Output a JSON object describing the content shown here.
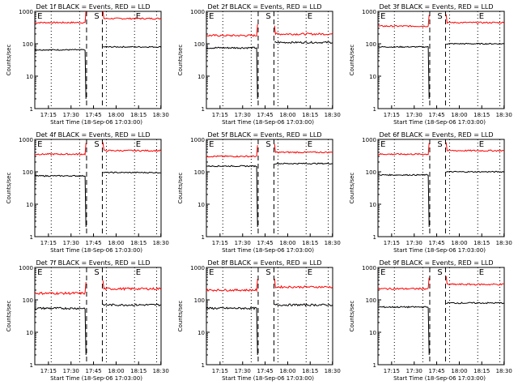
{
  "chart_data": [
    {
      "type": "line",
      "title": "Det 1f BLACK = Events, RED = LLD",
      "xlabel": "Start Time (18-Sep-06 17:03:00)",
      "ylabel": "Counts/sec",
      "yscale": "log",
      "ylim": [
        1,
        1000
      ],
      "y_ticks": [
        "1",
        "10",
        "100",
        "1000"
      ],
      "x_ticks": [
        "17:15",
        "17:30",
        "17:45",
        "18:00",
        "18:15",
        "18:30"
      ],
      "markers": [
        "E",
        "S",
        "E"
      ],
      "series": [
        {
          "color": "#ff0000",
          "level_before": 450,
          "level_after": 600,
          "noise": 0.05
        },
        {
          "color": "#000000",
          "level_before": 65,
          "level_after": 80,
          "noise": 0.04
        }
      ]
    },
    {
      "type": "line",
      "title": "Det 2f BLACK = Events, RED = LLD",
      "xlabel": "Start Time (18-Sep-06 17:03:00)",
      "ylabel": "Counts/sec",
      "yscale": "log",
      "ylim": [
        1,
        1000
      ],
      "y_ticks": [
        "1",
        "10",
        "100",
        "1000"
      ],
      "x_ticks": [
        "17:15",
        "17:30",
        "17:45",
        "18:00",
        "18:15",
        "18:30"
      ],
      "markers": [
        "E",
        "S",
        "E"
      ],
      "series": [
        {
          "color": "#ff0000",
          "level_before": 180,
          "level_after": 200,
          "noise": 0.07
        },
        {
          "color": "#000000",
          "level_before": 75,
          "level_after": 110,
          "noise": 0.06
        }
      ]
    },
    {
      "type": "line",
      "title": "Det 3f BLACK = Events, RED = LLD",
      "xlabel": "Start Time (18-Sep-06 17:03:00)",
      "ylabel": "Counts/sec",
      "yscale": "log",
      "ylim": [
        1,
        1000
      ],
      "y_ticks": [
        "1",
        "10",
        "100",
        "1000"
      ],
      "x_ticks": [
        "17:15",
        "17:30",
        "17:45",
        "18:00",
        "18:15",
        "18:30"
      ],
      "markers": [
        "E",
        "S",
        "E"
      ],
      "series": [
        {
          "color": "#ff0000",
          "level_before": 350,
          "level_after": 450,
          "noise": 0.05
        },
        {
          "color": "#000000",
          "level_before": 80,
          "level_after": 100,
          "noise": 0.04
        }
      ]
    },
    {
      "type": "line",
      "title": "Det 4f BLACK = Events, RED = LLD",
      "xlabel": "Start Time (18-Sep-06 17:03:00)",
      "ylabel": "Counts/sec",
      "yscale": "log",
      "ylim": [
        1,
        1000
      ],
      "y_ticks": [
        "1",
        "10",
        "100",
        "1000"
      ],
      "x_ticks": [
        "17:15",
        "17:30",
        "17:45",
        "18:00",
        "18:15",
        "18:30"
      ],
      "markers": [
        "E",
        "S",
        "E"
      ],
      "series": [
        {
          "color": "#ff0000",
          "level_before": 350,
          "level_after": 450,
          "noise": 0.05
        },
        {
          "color": "#000000",
          "level_before": 75,
          "level_after": 95,
          "noise": 0.04
        }
      ]
    },
    {
      "type": "line",
      "title": "Det 5f BLACK = Events, RED = LLD",
      "xlabel": "Start Time (18-Sep-06 17:03:00)",
      "ylabel": "Counts/sec",
      "yscale": "log",
      "ylim": [
        1,
        1000
      ],
      "y_ticks": [
        "1",
        "10",
        "100",
        "1000"
      ],
      "x_ticks": [
        "17:15",
        "17:30",
        "17:45",
        "18:00",
        "18:15",
        "18:30"
      ],
      "markers": [
        "E",
        "S",
        "E"
      ],
      "series": [
        {
          "color": "#ff0000",
          "level_before": 300,
          "level_after": 400,
          "noise": 0.05
        },
        {
          "color": "#000000",
          "level_before": 150,
          "level_after": 180,
          "noise": 0.04
        }
      ]
    },
    {
      "type": "line",
      "title": "Det 6f BLACK = Events, RED = LLD",
      "xlabel": "Start Time (18-Sep-06 17:03:00)",
      "ylabel": "Counts/sec",
      "yscale": "log",
      "ylim": [
        1,
        1000
      ],
      "y_ticks": [
        "1",
        "10",
        "100",
        "1000"
      ],
      "x_ticks": [
        "17:15",
        "17:30",
        "17:45",
        "18:00",
        "18:15",
        "18:30"
      ],
      "markers": [
        "E",
        "S",
        "E"
      ],
      "series": [
        {
          "color": "#ff0000",
          "level_before": 350,
          "level_after": 450,
          "noise": 0.05
        },
        {
          "color": "#000000",
          "level_before": 80,
          "level_after": 100,
          "noise": 0.04
        }
      ]
    },
    {
      "type": "line",
      "title": "Det 7f BLACK = Events, RED = LLD",
      "xlabel": "Start Time (18-Sep-06 17:03:00)",
      "ylabel": "Counts/sec",
      "yscale": "log",
      "ylim": [
        1,
        1000
      ],
      "y_ticks": [
        "1",
        "10",
        "100",
        "1000"
      ],
      "x_ticks": [
        "17:15",
        "17:30",
        "17:45",
        "18:00",
        "18:15",
        "18:30"
      ],
      "markers": [
        "E",
        "S",
        "E"
      ],
      "series": [
        {
          "color": "#ff0000",
          "level_before": 160,
          "level_after": 220,
          "noise": 0.08
        },
        {
          "color": "#000000",
          "level_before": 55,
          "level_after": 70,
          "noise": 0.07
        }
      ]
    },
    {
      "type": "line",
      "title": "Det 8f BLACK = Events, RED = LLD",
      "xlabel": "Start Time (18-Sep-06 17:03:00)",
      "ylabel": "Counts/sec",
      "yscale": "log",
      "ylim": [
        1,
        1000
      ],
      "y_ticks": [
        "1",
        "10",
        "100",
        "1000"
      ],
      "x_ticks": [
        "17:15",
        "17:30",
        "17:45",
        "18:00",
        "18:15",
        "18:30"
      ],
      "markers": [
        "E",
        "S",
        "E"
      ],
      "series": [
        {
          "color": "#ff0000",
          "level_before": 200,
          "level_after": 250,
          "noise": 0.07
        },
        {
          "color": "#000000",
          "level_before": 55,
          "level_after": 70,
          "noise": 0.07
        }
      ]
    },
    {
      "type": "line",
      "title": "Det 9f BLACK = Events, RED = LLD",
      "xlabel": "Start Time (18-Sep-06 17:03:00)",
      "ylabel": "Counts/sec",
      "yscale": "log",
      "ylim": [
        1,
        1000
      ],
      "y_ticks": [
        "1",
        "10",
        "100",
        "1000"
      ],
      "x_ticks": [
        "17:15",
        "17:30",
        "17:45",
        "18:00",
        "18:15",
        "18:30"
      ],
      "markers": [
        "E",
        "S",
        "E"
      ],
      "series": [
        {
          "color": "#ff0000",
          "level_before": 220,
          "level_after": 300,
          "noise": 0.06
        },
        {
          "color": "#000000",
          "level_before": 60,
          "level_after": 80,
          "noise": 0.05
        }
      ]
    }
  ]
}
